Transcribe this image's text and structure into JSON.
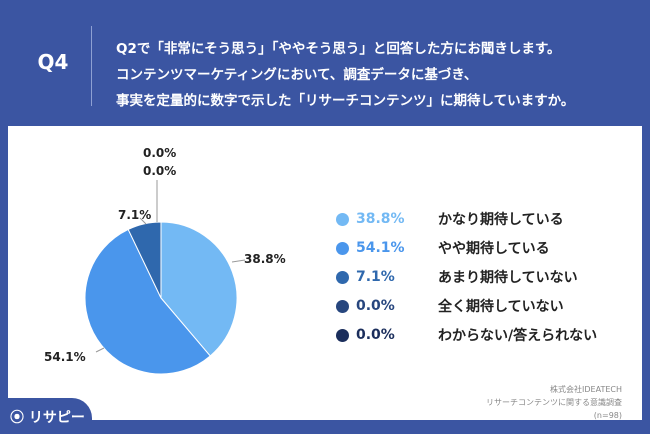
{
  "header": {
    "question_id": "Q4",
    "question_lines": [
      "Q2で「非常にそう思う」「ややそう思う」と回答した方にお聞きします。",
      "コンテンツマーケティングにおいて、調査データに基づき、",
      "事実を定量的に数字で示した「リサーチコンテンツ」に期待していますか。"
    ]
  },
  "chart_data": {
    "type": "pie",
    "start": "top",
    "direction": "clockwise",
    "categories": [
      "かなり期待している",
      "やや期待している",
      "あまり期待していない",
      "全く期待していない",
      "わからない/答えられない"
    ],
    "values": [
      38.8,
      54.1,
      7.1,
      0.0,
      0.0
    ],
    "value_labels": [
      "38.8%",
      "54.1%",
      "7.1%",
      "0.0%",
      "0.0%"
    ],
    "colors": [
      "#73b9f4",
      "#4a96ec",
      "#2f68ad",
      "#27467e",
      "#1b2e5c"
    ],
    "legend_placement": "right"
  },
  "source": {
    "company": "株式会社IDEATECH",
    "survey": "リサーチコンテンツに関する意識調査",
    "n": "(n=98)"
  },
  "logo": {
    "text": "リサピー"
  }
}
